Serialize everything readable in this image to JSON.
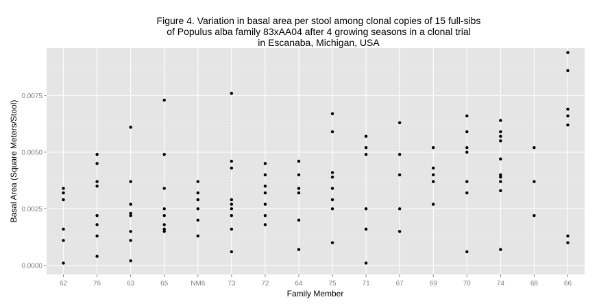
{
  "chart_data": {
    "type": "scatter",
    "title": [
      "Figure 4. Variation in basal area per stool among clonal copies of 15 full-sibs",
      "of Populus alba family 83xAA04 after 4 growing seasons in a clonal trial",
      "in Escanaba, Michigan, USA"
    ],
    "xlabel": "Family Member",
    "ylabel": "Basal Area (Square Meters/Stool)",
    "categories": [
      "62",
      "76",
      "63",
      "65",
      "NM6",
      "73",
      "72",
      "64",
      "75",
      "71",
      "67",
      "69",
      "70",
      "74",
      "68",
      "66"
    ],
    "ylim": [
      -0.0004,
      0.0096
    ],
    "yticks": [
      0.0,
      0.0025,
      0.005,
      0.0075
    ],
    "ytick_labels": [
      "0.0000",
      "0.0025",
      "0.0050",
      "0.0075"
    ],
    "grid": true,
    "colors": {
      "panel_background": "#e5e5e5",
      "grid_major": "#ffffff",
      "grid_minor": "#f2f2f2",
      "point": "#000000",
      "tick_label": "#7f7f7f"
    },
    "points": [
      {
        "x": "62",
        "y": [
          0.0034,
          0.0032,
          0.0029,
          0.0016,
          0.0011,
          0.0001
        ]
      },
      {
        "x": "76",
        "y": [
          0.0049,
          0.0045,
          0.0037,
          0.0035,
          0.0022,
          0.0018,
          0.0013,
          0.0004
        ]
      },
      {
        "x": "63",
        "y": [
          0.0061,
          0.0037,
          0.0027,
          0.0023,
          0.0022,
          0.0015,
          0.0011,
          0.0002
        ]
      },
      {
        "x": "65",
        "y": [
          0.0073,
          0.0049,
          0.0034,
          0.0025,
          0.0022,
          0.0018,
          0.0016,
          0.0015
        ]
      },
      {
        "x": "NM6",
        "y": [
          0.0037,
          0.0032,
          0.0029,
          0.0025,
          0.002,
          0.0013
        ]
      },
      {
        "x": "73",
        "y": [
          0.0076,
          0.0046,
          0.0043,
          0.0029,
          0.0027,
          0.0025,
          0.0022,
          0.0016,
          0.0006
        ]
      },
      {
        "x": "72",
        "y": [
          0.0045,
          0.004,
          0.0035,
          0.0032,
          0.0027,
          0.0022,
          0.0018
        ]
      },
      {
        "x": "64",
        "y": [
          0.0046,
          0.004,
          0.0034,
          0.0032,
          0.002,
          0.0007
        ]
      },
      {
        "x": "75",
        "y": [
          0.0067,
          0.0059,
          0.0041,
          0.0039,
          0.0034,
          0.0029,
          0.0025,
          0.001
        ]
      },
      {
        "x": "71",
        "y": [
          0.0057,
          0.0052,
          0.0049,
          0.0025,
          0.0016,
          0.0001
        ]
      },
      {
        "x": "67",
        "y": [
          0.0063,
          0.0049,
          0.004,
          0.0025,
          0.0015
        ]
      },
      {
        "x": "69",
        "y": [
          0.0052,
          0.0043,
          0.004,
          0.0037,
          0.0027
        ]
      },
      {
        "x": "70",
        "y": [
          0.0066,
          0.0059,
          0.0052,
          0.005,
          0.0037,
          0.0032,
          0.0006
        ]
      },
      {
        "x": "74",
        "y": [
          0.0064,
          0.0059,
          0.0057,
          0.0055,
          0.0047,
          0.004,
          0.0039,
          0.0037,
          0.0033,
          0.0007
        ]
      },
      {
        "x": "68",
        "y": [
          0.0052,
          0.0037,
          0.0022
        ]
      },
      {
        "x": "66",
        "y": [
          0.0094,
          0.0086,
          0.0069,
          0.0066,
          0.0062,
          0.0013,
          0.001
        ]
      }
    ]
  }
}
